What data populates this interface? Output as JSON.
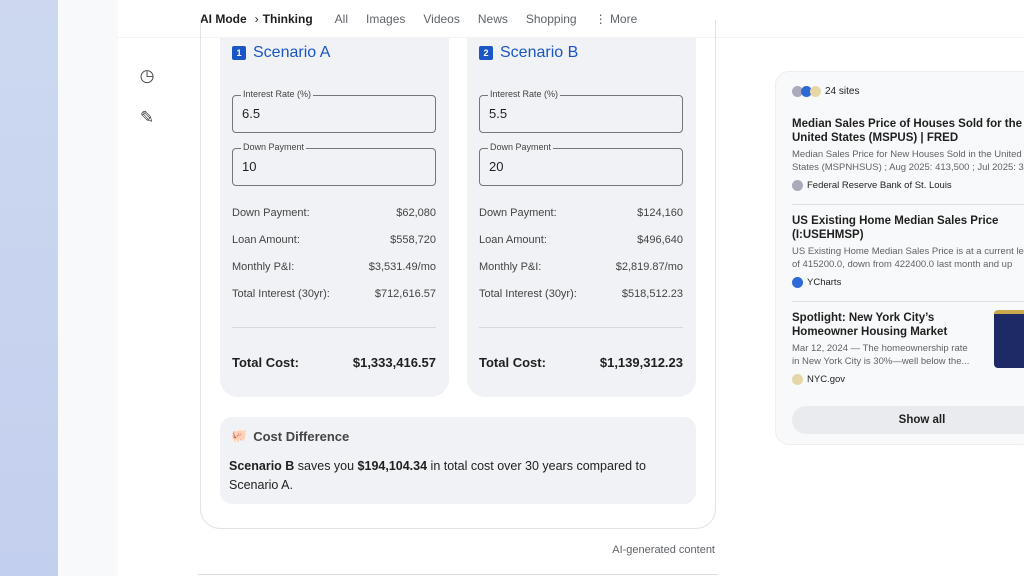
{
  "topbar": {
    "crumb1": "AI Mode",
    "crumb_sep": "›",
    "crumb2": "Thinking",
    "tabs": [
      "All",
      "Images",
      "Videos",
      "News",
      "Shopping",
      "More"
    ],
    "more_icon": "⋮"
  },
  "rail": {
    "history_icon": "history-icon",
    "new_chat_icon": "edit-icon"
  },
  "scenarios": [
    {
      "num": "1",
      "title": "Scenario A",
      "rate_label": "Interest Rate (%)",
      "rate": "6.5",
      "down_label": "Down Payment",
      "down": "10",
      "rows": [
        [
          "Down Payment:",
          "$62,080"
        ],
        [
          "Loan Amount:",
          "$558,720"
        ],
        [
          "Monthly P&I:",
          "$3,531.49/mo"
        ],
        [
          "Total Interest (30yr):",
          "$712,616.57"
        ]
      ],
      "total_label": "Total Cost:",
      "total": "$1,333,416.57"
    },
    {
      "num": "2",
      "title": "Scenario B",
      "rate_label": "Interest Rate (%)",
      "rate": "5.5",
      "down_label": "Down Payment",
      "down": "20",
      "rows": [
        [
          "Down Payment:",
          "$124,160"
        ],
        [
          "Loan Amount:",
          "$496,640"
        ],
        [
          "Monthly P&I:",
          "$2,819.87/mo"
        ],
        [
          "Total Interest (30yr):",
          "$518,512.23"
        ]
      ],
      "total_label": "Total Cost:",
      "total": "$1,139,312.23"
    }
  ],
  "difference": {
    "title": "Cost Difference",
    "b1": "Scenario B",
    "t1": " saves you ",
    "b2": "$194,104.34",
    "t2": " in total cost over 30 years compared to Scenario A."
  },
  "ai_note": "AI-generated content",
  "sources": {
    "count": "24 sites",
    "items": [
      {
        "title": "Median Sales Price of Houses Sold for the United States (MSPUS) | FRED",
        "snippet1": "Median Sales Price for New Houses Sold in the United",
        "snippet2": "States (MSPNHSUS) ; Aug 2025: 413,500 ; Jul 2025: 3",
        "source": "Federal Reserve Bank of St. Louis"
      },
      {
        "title": "US Existing Home Median Sales Price (I:USEHMSP)",
        "snippet1": "US Existing Home Median Sales Price is at a current le",
        "snippet2": "of 415200.0, down from 422400.0 last month and up",
        "source": "YCharts"
      },
      {
        "title": "Spotlight: New York City’s Homeowner Housing Market",
        "snippet1": "Mar 12, 2024 — The homeownership rate",
        "snippet2": "in New York City is 30%—well below the...",
        "source": "NYC.gov"
      }
    ],
    "show_all": "Show all"
  }
}
